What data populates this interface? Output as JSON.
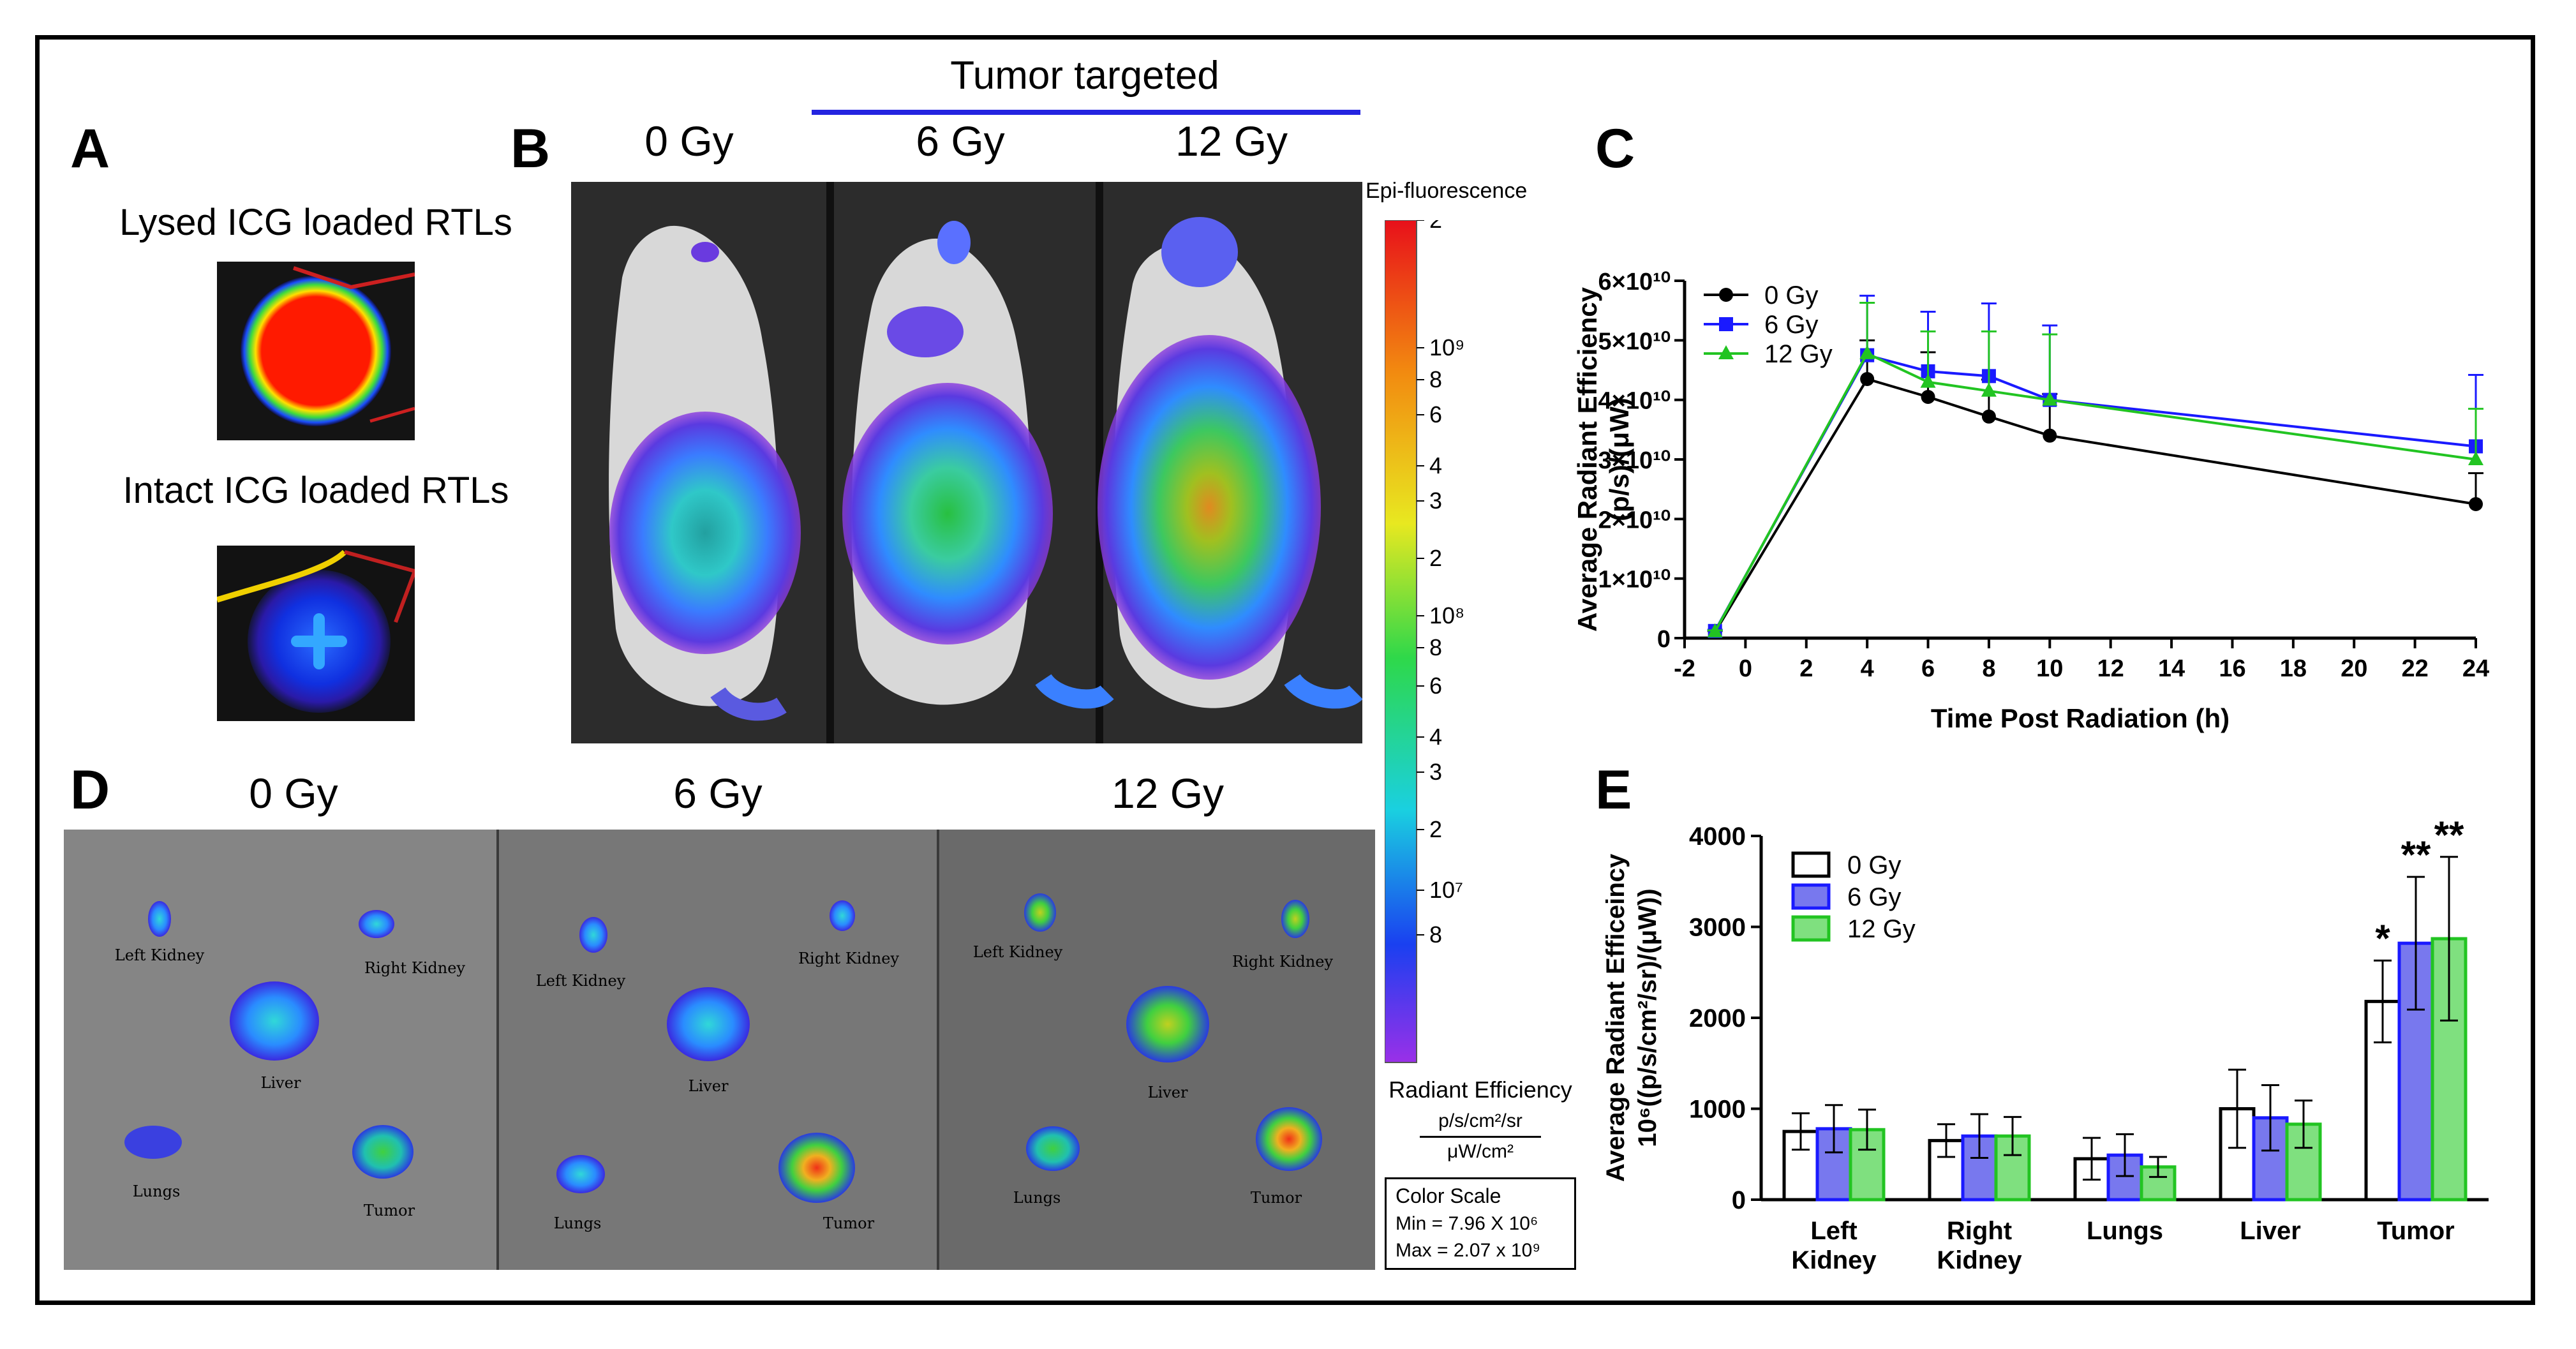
{
  "panels": {
    "A": {
      "letter": "A",
      "lysed_caption": "Lysed ICG loaded RTLs",
      "intact_caption": "Intact ICG loaded RTLs"
    },
    "B": {
      "letter": "B",
      "group_label": "Tumor targeted",
      "dose_labels": [
        "0 Gy",
        "6 Gy",
        "12 Gy"
      ]
    },
    "C": {
      "letter": "C"
    },
    "D": {
      "letter": "D",
      "dose_labels": [
        "0 Gy",
        "6 Gy",
        "12 Gy"
      ],
      "organ_labels_0": [
        "Left Kidney",
        "Right Kidney",
        "Liver",
        "Lungs",
        "Tumor"
      ],
      "organ_labels_6": [
        "Left Kidney",
        "Right Kidney",
        "Liver",
        "Lungs",
        "Tumor"
      ],
      "organ_labels_12": [
        "Left Kidney",
        "Right Kidney",
        "Liver",
        "Lungs",
        "Tumor"
      ]
    },
    "E": {
      "letter": "E"
    }
  },
  "colorbar": {
    "title": "Epi-fluorescence",
    "tick_labels": [
      "2",
      "10⁹",
      "8",
      "6",
      "4",
      "3",
      "2",
      "10⁸",
      "8",
      "6",
      "4",
      "3",
      "2",
      "10⁷",
      "8"
    ],
    "units_title": "Radiant Efficiency",
    "units_numerator": "p/s/cm²/sr",
    "units_denominator": "μW/cm²",
    "scale_box": {
      "title": "Color Scale",
      "min_label": "Min = 7.96 X 10⁶",
      "max_label": "Max = 2.07 x 10⁹"
    }
  },
  "chart_data": [
    {
      "id": "C",
      "type": "line",
      "title": "",
      "xlabel": "Time Post Radiation (h)",
      "ylabel_line1": "Average Radiant Efficiency",
      "ylabel_line2": "(p/s)/(μW)",
      "xlim": [
        -2,
        24
      ],
      "ylim": [
        0,
        60000000000.0
      ],
      "x_ticks": [
        -2,
        0,
        2,
        4,
        6,
        8,
        10,
        12,
        14,
        16,
        18,
        20,
        22,
        24
      ],
      "x_tick_labels": [
        "-2",
        "0",
        "2",
        "4",
        "6",
        "8",
        "10",
        "12",
        "14",
        "16",
        "18",
        "20",
        "22",
        "24"
      ],
      "y_ticks": [
        0,
        10000000000.0,
        20000000000.0,
        30000000000.0,
        40000000000.0,
        50000000000.0,
        60000000000.0
      ],
      "y_tick_labels": [
        "0",
        "1×10¹⁰",
        "2×10¹⁰",
        "3×10¹⁰",
        "4×10¹⁰",
        "5×10¹⁰",
        "6×10¹⁰"
      ],
      "legend_position": "top-left",
      "series": [
        {
          "name": "0 Gy",
          "color": "#000000",
          "marker": "circle",
          "x": [
            -1,
            4,
            6,
            8,
            10,
            24
          ],
          "y": [
            1000000000.0,
            43500000000.0,
            40500000000.0,
            37200000000.0,
            34000000000.0,
            22500000000.0
          ],
          "err": [
            200000000.0,
            6500000000.0,
            7500000000.0,
            6200000000.0,
            7000000000.0,
            5200000000.0
          ]
        },
        {
          "name": "6 Gy",
          "color": "#1a1aff",
          "marker": "square",
          "x": [
            -1,
            4,
            6,
            8,
            10,
            24
          ],
          "y": [
            1200000000.0,
            47500000000.0,
            44800000000.0,
            44000000000.0,
            40000000000.0,
            32200000000.0
          ],
          "err": [
            200000000.0,
            10000000000.0,
            10000000000.0,
            12200000000.0,
            12500000000.0,
            12000000000.0
          ]
        },
        {
          "name": "12 Gy",
          "color": "#22c422",
          "marker": "triangle",
          "x": [
            -1,
            4,
            6,
            8,
            10,
            24
          ],
          "y": [
            1100000000.0,
            47800000000.0,
            43000000000.0,
            41500000000.0,
            40000000000.0,
            30000000000.0
          ],
          "err": [
            200000000.0,
            8500000000.0,
            8500000000.0,
            10000000000.0,
            11000000000.0,
            8500000000.0
          ]
        }
      ]
    },
    {
      "id": "E",
      "type": "bar",
      "title": "",
      "xlabel": "",
      "ylabel_line1": "Average Radiant Efficeincy",
      "ylabel_line2": "10⁶((p/s/cm²/sr)/(μW))",
      "ylim": [
        0,
        4000
      ],
      "y_ticks": [
        0,
        1000,
        2000,
        3000,
        4000
      ],
      "y_tick_labels": [
        "0",
        "1000",
        "2000",
        "3000",
        "4000"
      ],
      "categories": [
        [
          "Left",
          "Kidney"
        ],
        [
          "Right",
          "Kidney"
        ],
        [
          "Lungs"
        ],
        [
          "Liver"
        ],
        [
          "Tumor"
        ]
      ],
      "legend_position": "top-left",
      "series": [
        {
          "name": "0 Gy",
          "color": "#000000",
          "fill": "#ffffff",
          "values": [
            750,
            650,
            450,
            1000,
            2180
          ],
          "err": [
            200,
            180,
            230,
            430,
            450
          ]
        },
        {
          "name": "6 Gy",
          "color": "#1a1aff",
          "fill": "#7878ee",
          "values": [
            780,
            700,
            490,
            900,
            2820
          ],
          "err": [
            260,
            240,
            230,
            360,
            730
          ]
        },
        {
          "name": "12 Gy",
          "color": "#22c422",
          "fill": "#7fe07f",
          "values": [
            770,
            700,
            360,
            830,
            2870
          ],
          "err": [
            220,
            210,
            110,
            260,
            900
          ]
        }
      ],
      "significance": [
        {
          "category": 4,
          "series": 0,
          "label": "*"
        },
        {
          "category": 4,
          "series": 1,
          "label": "**"
        },
        {
          "category": 4,
          "series": 2,
          "label": "**"
        }
      ]
    }
  ]
}
